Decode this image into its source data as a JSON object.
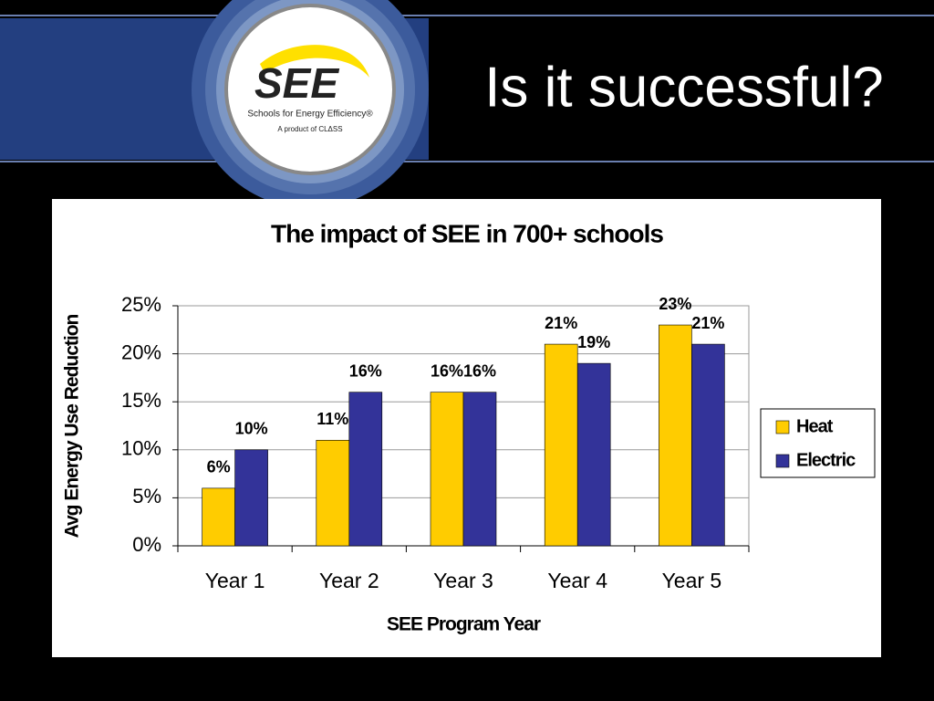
{
  "slide_title": "Is it successful?",
  "logo": {
    "name": "SEE",
    "tagline": "Schools for Energy Efficiency®",
    "product": "A product of CLΔSS"
  },
  "chart_data": {
    "type": "bar",
    "title": "The impact of SEE in 700+ schools",
    "x_label": "SEE Program Year",
    "y_label": "Avg Energy Use Reduction",
    "categories": [
      "Year 1",
      "Year 2",
      "Year 3",
      "Year 4",
      "Year 5"
    ],
    "series": [
      {
        "name": "Heat",
        "color": "#ffcc00",
        "values": [
          6,
          11,
          16,
          21,
          23
        ],
        "value_labels": [
          "6%",
          "11%",
          "16%",
          "21%",
          "23%"
        ]
      },
      {
        "name": "Electric",
        "color": "#333399",
        "values": [
          10,
          16,
          16,
          19,
          21
        ],
        "value_labels": [
          "10%",
          "16%",
          "16%",
          "19%",
          "21%"
        ]
      }
    ],
    "ylim": [
      0,
      25
    ],
    "yticks": [
      {
        "value": 0,
        "label": "0%"
      },
      {
        "value": 5,
        "label": "5%"
      },
      {
        "value": 10,
        "label": "10%"
      },
      {
        "value": 15,
        "label": "15%"
      },
      {
        "value": 20,
        "label": "20%"
      },
      {
        "value": 25,
        "label": "25%"
      }
    ],
    "grid": true,
    "legend": "right"
  }
}
